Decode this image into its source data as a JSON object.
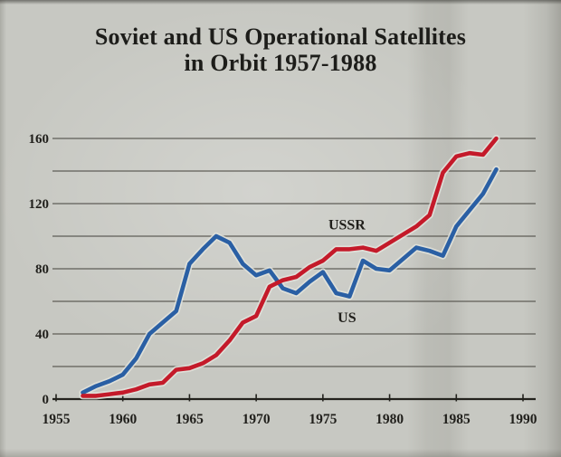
{
  "title": {
    "line1": "Soviet and US Operational Satellites",
    "line2": "in Orbit 1957-1988"
  },
  "chart_data": {
    "type": "line",
    "title": "Soviet and US Operational Satellites in Orbit 1957-1988",
    "xlabel": "",
    "ylabel": "",
    "xlim": [
      1955,
      1990
    ],
    "ylim": [
      0,
      160
    ],
    "grid": true,
    "ygrid_step": 20,
    "xticks": [
      1955,
      1960,
      1965,
      1970,
      1975,
      1980,
      1985,
      1990
    ],
    "yticks_labeled": [
      0,
      40,
      80,
      120,
      160
    ],
    "legend_position": "inline-annotations",
    "x_years": [
      1957,
      1958,
      1959,
      1960,
      1961,
      1962,
      1963,
      1964,
      1965,
      1966,
      1967,
      1968,
      1969,
      1970,
      1971,
      1972,
      1973,
      1974,
      1975,
      1976,
      1977,
      1978,
      1979,
      1980,
      1981,
      1982,
      1983,
      1984,
      1985,
      1986,
      1987,
      1988
    ],
    "series": [
      {
        "name": "US",
        "values": [
          4,
          8,
          11,
          15,
          25,
          40,
          47,
          54,
          83,
          92,
          100,
          96,
          83,
          76,
          79,
          68,
          65,
          72,
          78,
          65,
          63,
          85,
          80,
          79,
          86,
          93,
          91,
          88,
          106,
          116,
          126,
          141
        ],
        "label": {
          "text": "US",
          "year": 1976.8,
          "value": 50
        }
      },
      {
        "name": "USSR",
        "values": [
          2,
          2,
          3,
          4,
          6,
          9,
          10,
          18,
          19,
          22,
          27,
          36,
          47,
          51,
          69,
          73,
          75,
          81,
          85,
          92,
          92,
          93,
          91,
          96,
          101,
          106,
          113,
          139,
          149,
          151,
          150,
          160
        ],
        "label": {
          "text": "USSR",
          "year": 1976.8,
          "value": 107
        }
      }
    ]
  },
  "colors": {
    "background": "#c7c8c2",
    "us_line": "#2a5fa4",
    "ussr_line": "#c41a2a",
    "line_halo": "#e2e3dc",
    "grid_line": "#53524b",
    "axis_line": "#23221d",
    "label_text": "#201f1b"
  }
}
